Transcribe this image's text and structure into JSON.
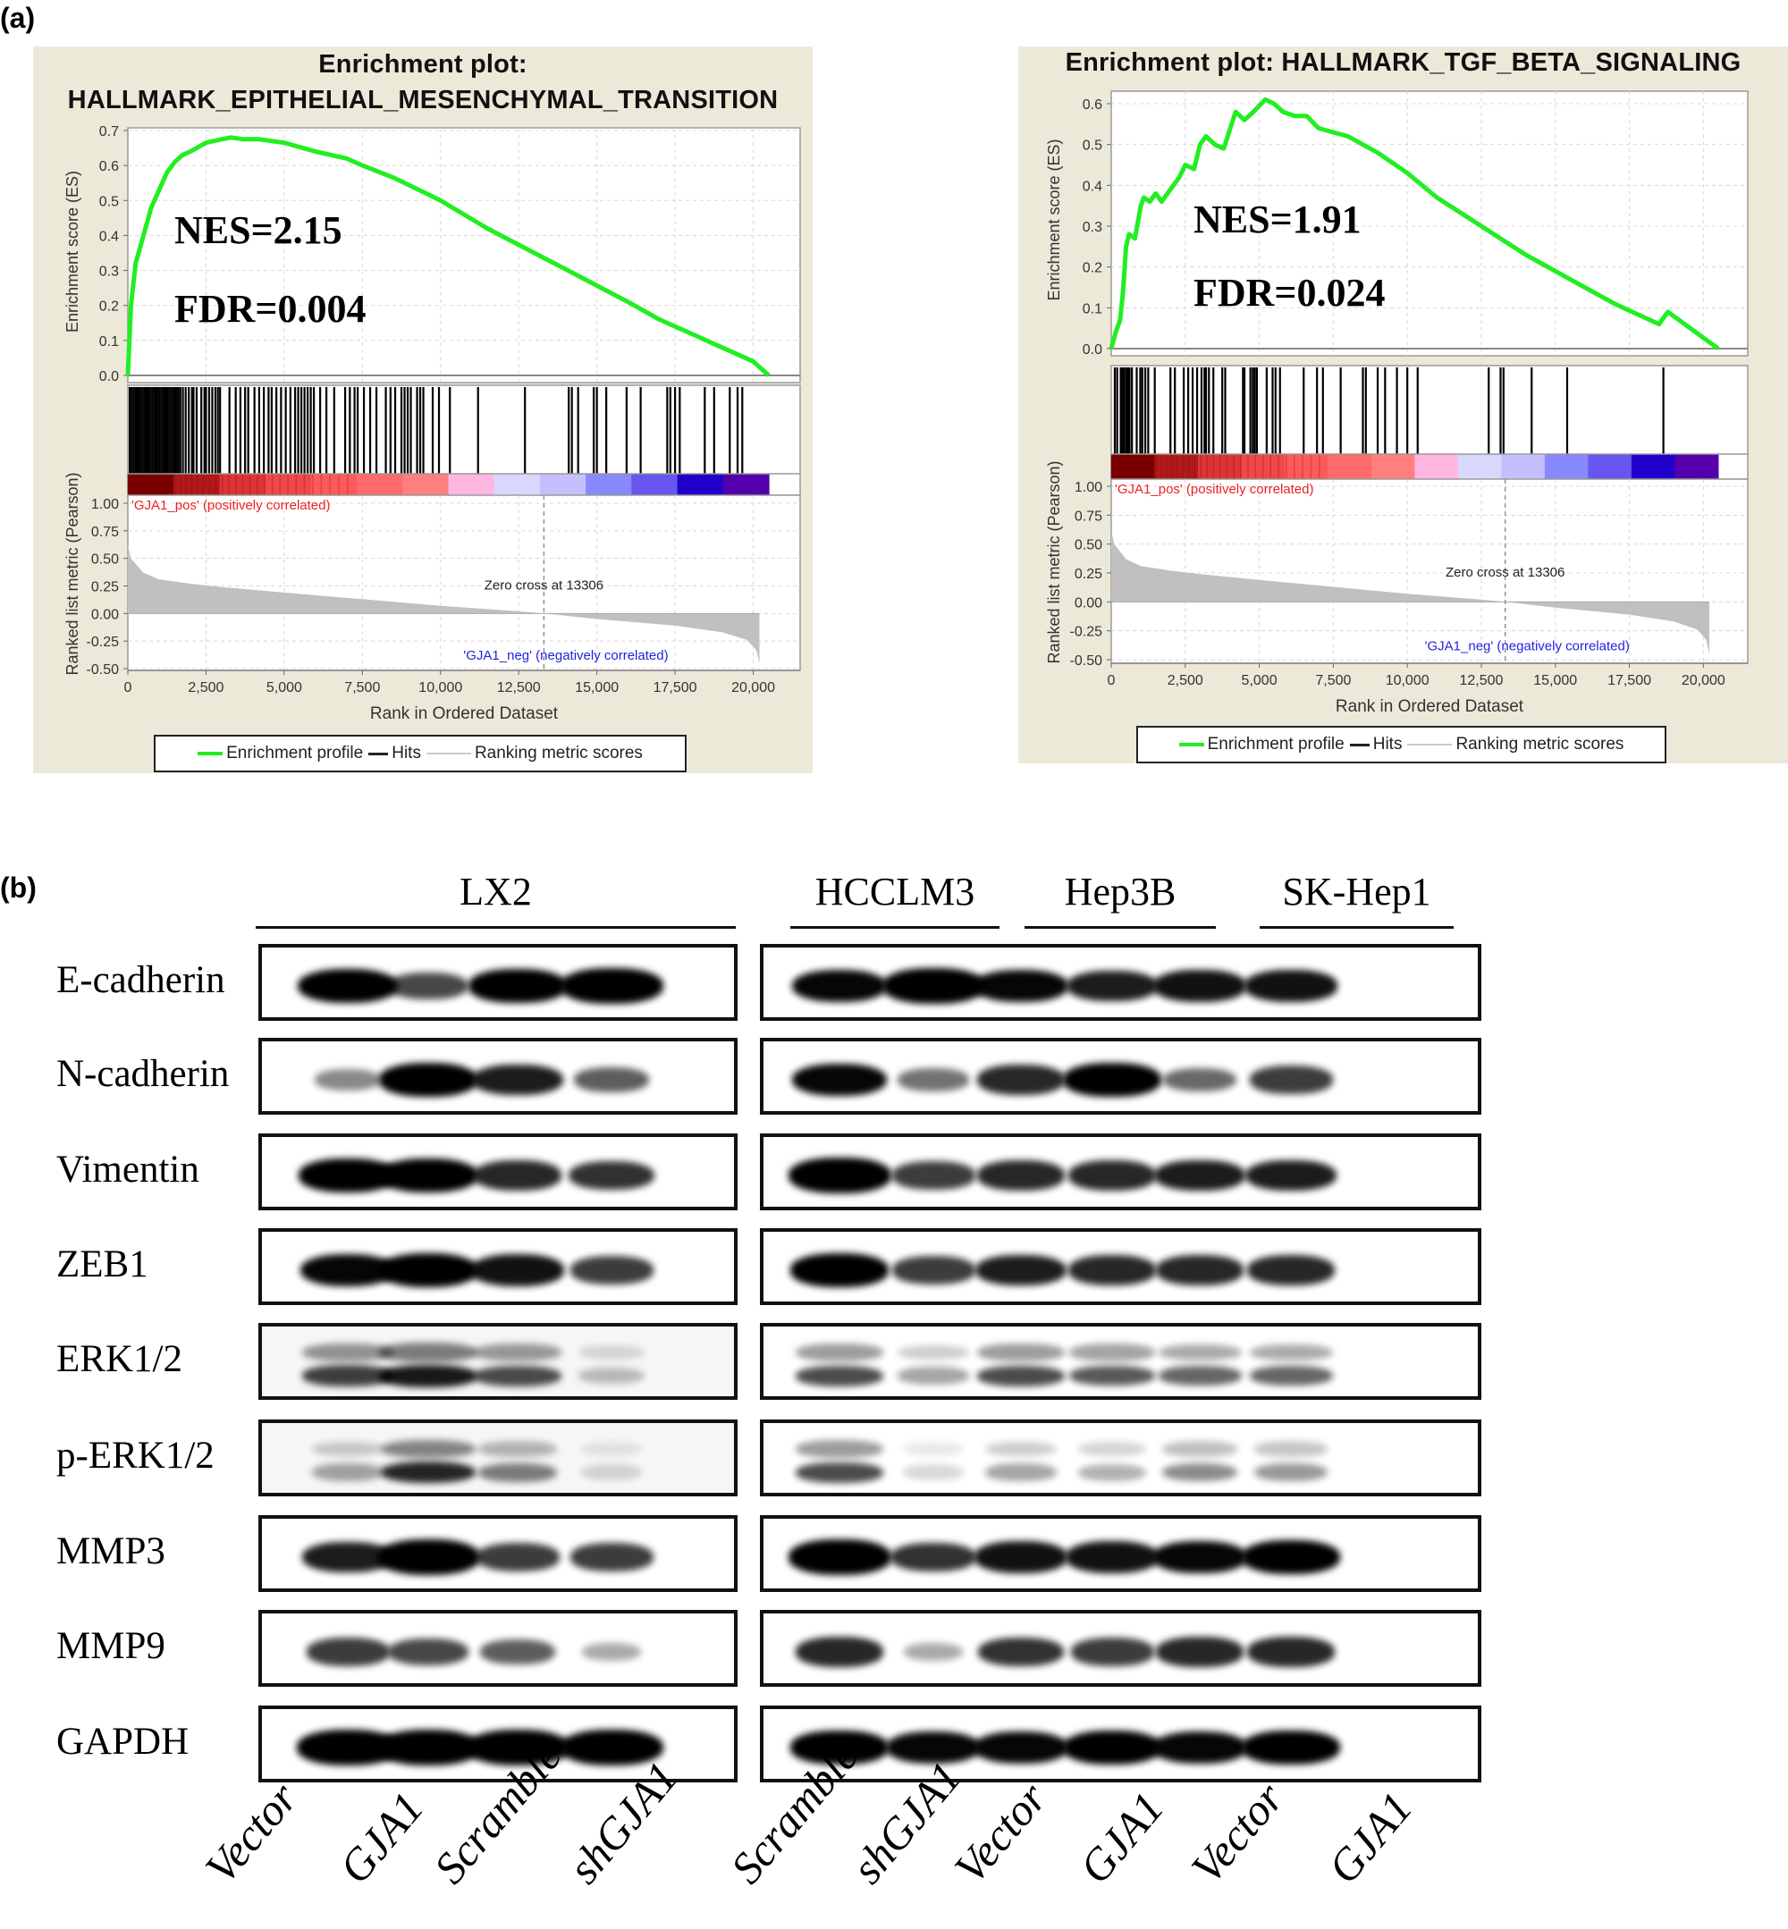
{
  "figure": {
    "panel_a_label": "(a)",
    "panel_b_label": "(b)"
  },
  "gsea_left": {
    "title_line1": "Enrichment plot:",
    "title_line2": "HALLMARK_EPITHELIAL_MESENCHYMAL_TRANSITION",
    "nes": "NES=2.15",
    "fdr": "FDR=0.004",
    "es_ylabel": "Enrichment score (ES)",
    "metric_ylabel": "Ranked list metric (Pearson)",
    "xlabel": "Rank in Ordered Dataset",
    "pos_label": "'GJA1_pos' (positively correlated)",
    "neg_label": "'GJA1_neg' (negatively correlated)",
    "zero_cross": "Zero cross at 13306",
    "legend": {
      "enrichment": "Enrichment profile",
      "hits": "Hits",
      "ranking": "Ranking metric scores"
    }
  },
  "gsea_right": {
    "title_line1": "Enrichment plot: HALLMARK_TGF_BETA_SIGNALING",
    "nes": "NES=1.91",
    "fdr": "FDR=0.024",
    "es_ylabel": "Enrichment score (ES)",
    "metric_ylabel": "Ranked list metric (Pearson)",
    "xlabel": "Rank in Ordered Dataset",
    "pos_label": "'GJA1_pos' (positively correlated)",
    "neg_label": "'GJA1_neg' (negatively correlated)",
    "zero_cross": "Zero cross at 13306",
    "legend": {
      "enrichment": "Enrichment profile",
      "hits": "Hits",
      "ranking": "Ranking metric scores"
    }
  },
  "colors": {
    "panel_bg": "#ece9d8",
    "enrichment_line": "#22ee22",
    "hits": "#000000",
    "metric_fill": "#c0c0c0",
    "pos_label": "#ee2222",
    "neg_label": "#2222dd"
  },
  "chart_data": [
    {
      "type": "line",
      "title": "Enrichment plot: HALLMARK_EPITHELIAL_MESENCHYMAL_TRANSITION",
      "xlabel": "Rank in Ordered Dataset",
      "ylabel": "Enrichment score (ES)",
      "xlim": [
        0,
        21500
      ],
      "ylim": [
        0.0,
        0.7
      ],
      "yticks": [
        0.0,
        0.1,
        0.2,
        0.3,
        0.4,
        0.5,
        0.6,
        0.7
      ],
      "xticks": [
        0,
        2500,
        5000,
        7500,
        10000,
        12500,
        15000,
        17500,
        20000
      ],
      "xtick_labels": [
        "0",
        "2,500",
        "5,000",
        "7,500",
        "10,000",
        "12,500",
        "15,000",
        "17,500",
        "20,000"
      ],
      "series": [
        {
          "name": "Enrichment profile",
          "x": [
            0,
            100,
            250,
            500,
            750,
            1000,
            1250,
            1500,
            1750,
            2000,
            2500,
            3000,
            3300,
            3700,
            4200,
            5000,
            6000,
            7000,
            7500,
            8500,
            10000,
            11500,
            13000,
            14500,
            16000,
            17000,
            18000,
            19000,
            20000,
            20500
          ],
          "y": [
            0.0,
            0.2,
            0.32,
            0.4,
            0.48,
            0.53,
            0.58,
            0.61,
            0.63,
            0.64,
            0.665,
            0.675,
            0.68,
            0.675,
            0.675,
            0.665,
            0.64,
            0.62,
            0.6,
            0.565,
            0.5,
            0.42,
            0.35,
            0.28,
            0.21,
            0.16,
            0.12,
            0.08,
            0.04,
            0.0
          ]
        }
      ],
      "annotations": [
        "NES=2.15",
        "FDR=0.004"
      ],
      "metric": {
        "ylabel": "Ranked list metric (Pearson)",
        "ylim": [
          -0.5,
          1.0
        ],
        "yticks": [
          1.0,
          0.75,
          0.5,
          0.25,
          0.0,
          -0.25,
          -0.5
        ],
        "ytick_labels": [
          "1.00",
          "0.75",
          "0.50",
          "0.25",
          "0.00",
          "-0.25",
          "-0.50"
        ],
        "x": [
          0,
          100,
          500,
          1000,
          2000,
          3000,
          5000,
          7500,
          10000,
          12500,
          13306,
          15000,
          17500,
          19000,
          19800,
          20100,
          20200
        ],
        "y": [
          0.62,
          0.5,
          0.37,
          0.31,
          0.27,
          0.24,
          0.19,
          0.13,
          0.07,
          0.02,
          0.0,
          -0.05,
          -0.11,
          -0.17,
          -0.24,
          -0.33,
          -0.45
        ],
        "zero_cross": 13306
      },
      "hits_end": 20500,
      "legend": [
        "Enrichment profile",
        "Hits",
        "Ranking metric scores"
      ],
      "legend_position": "bottom"
    },
    {
      "type": "line",
      "title": "Enrichment plot: HALLMARK_TGF_BETA_SIGNALING",
      "xlabel": "Rank in Ordered Dataset",
      "ylabel": "Enrichment score (ES)",
      "xlim": [
        0,
        21500
      ],
      "ylim": [
        0.0,
        0.6
      ],
      "yticks": [
        0.0,
        0.1,
        0.2,
        0.3,
        0.4,
        0.5,
        0.6
      ],
      "xticks": [
        0,
        2500,
        5000,
        7500,
        10000,
        12500,
        15000,
        17500,
        20000
      ],
      "xtick_labels": [
        "0",
        "2,500",
        "5,000",
        "7,500",
        "10,000",
        "12,500",
        "15,000",
        "17,500",
        "20,000"
      ],
      "series": [
        {
          "name": "Enrichment profile",
          "x": [
            0,
            150,
            300,
            400,
            500,
            600,
            800,
            1000,
            1100,
            1300,
            1500,
            1700,
            2000,
            2300,
            2500,
            2800,
            3000,
            3200,
            3500,
            3800,
            4200,
            4500,
            4800,
            5200,
            5500,
            5800,
            6200,
            6600,
            7000,
            7500,
            8000,
            8500,
            9000,
            10000,
            11000,
            12500,
            14000,
            15500,
            17000,
            18500,
            18800,
            20500
          ],
          "y": [
            0.0,
            0.04,
            0.07,
            0.14,
            0.25,
            0.28,
            0.27,
            0.35,
            0.37,
            0.36,
            0.38,
            0.36,
            0.39,
            0.42,
            0.45,
            0.44,
            0.5,
            0.52,
            0.5,
            0.49,
            0.58,
            0.56,
            0.58,
            0.61,
            0.6,
            0.58,
            0.57,
            0.57,
            0.54,
            0.53,
            0.52,
            0.5,
            0.48,
            0.43,
            0.37,
            0.3,
            0.23,
            0.17,
            0.11,
            0.06,
            0.09,
            0.0
          ]
        }
      ],
      "annotations": [
        "NES=1.91",
        "FDR=0.024"
      ],
      "metric": {
        "ylabel": "Ranked list metric (Pearson)",
        "ylim": [
          -0.5,
          1.0
        ],
        "yticks": [
          1.0,
          0.75,
          0.5,
          0.25,
          0.0,
          -0.25,
          -0.5
        ],
        "ytick_labels": [
          "1.00",
          "0.75",
          "0.50",
          "0.25",
          "0.00",
          "-0.25",
          "-0.50"
        ],
        "x": [
          0,
          100,
          500,
          1000,
          2000,
          3000,
          5000,
          7500,
          10000,
          12500,
          13306,
          15000,
          17500,
          19000,
          19800,
          20100,
          20200
        ],
        "y": [
          0.62,
          0.5,
          0.37,
          0.31,
          0.27,
          0.24,
          0.19,
          0.13,
          0.07,
          0.02,
          0.0,
          -0.05,
          -0.11,
          -0.17,
          -0.24,
          -0.33,
          -0.45
        ],
        "zero_cross": 13306
      },
      "hits_end": 20500,
      "legend": [
        "Enrichment profile",
        "Hits",
        "Ranking metric scores"
      ],
      "legend_position": "bottom"
    }
  ],
  "hits_left": [
    60,
    120,
    180,
    240,
    300,
    360,
    420,
    480,
    540,
    600,
    660,
    720,
    780,
    840,
    900,
    960,
    1020,
    1080,
    1140,
    1200,
    1260,
    1320,
    1380,
    1440,
    1500,
    1560,
    1620,
    1680,
    1760,
    1850,
    1950,
    2050,
    2100,
    2200,
    2350,
    2450,
    2500,
    2600,
    2700,
    2800,
    2880,
    2950,
    3250,
    3450,
    3600,
    3750,
    3850,
    4050,
    4200,
    4350,
    4500,
    4600,
    4750,
    4900,
    5050,
    5200,
    5350,
    5450,
    5550,
    5650,
    5750,
    5850,
    5950,
    6150,
    6350,
    6600,
    6950,
    7100,
    7250,
    7350,
    7550,
    7750,
    7950,
    8250,
    8400,
    8550,
    8750,
    8850,
    8950,
    9050,
    9250,
    9350,
    9450,
    9750,
    9950,
    10300,
    11200,
    12700,
    14100,
    14200,
    14400,
    14900,
    15000,
    15300,
    15950,
    16400,
    17250,
    17350,
    17500,
    17650,
    18450,
    18750,
    19250,
    19500,
    19650
  ],
  "hits_right": [
    120,
    200,
    320,
    380,
    430,
    500,
    560,
    620,
    700,
    860,
    980,
    1050,
    1150,
    1250,
    1470,
    2000,
    2150,
    2450,
    2600,
    2750,
    2900,
    3050,
    3150,
    3200,
    3300,
    3450,
    3750,
    3850,
    4450,
    4500,
    4700,
    4780,
    4850,
    4920,
    5250,
    5450,
    5550,
    5700,
    6500,
    6950,
    7150,
    7750,
    8500,
    8600,
    9000,
    9250,
    9650,
    10000,
    10350,
    12750,
    13150,
    13250,
    14200,
    15400,
    18650
  ],
  "colorbar_stops": [
    "#7a0000",
    "#b01a1a",
    "#dd3535",
    "#f04848",
    "#ff5a5a",
    "#ff6a6a",
    "#ff7e7e",
    "#ffb6e0",
    "#d8d8ff",
    "#c4c0ff",
    "#8888ff",
    "#6655ee",
    "#2200cc",
    "#5500aa"
  ],
  "western_blot": {
    "groups_left": [
      {
        "name": "LX2",
        "lanes": [
          "Vector",
          "GJA1",
          "Scramble",
          "shGJA1"
        ]
      }
    ],
    "groups_right": [
      {
        "name": "HCCLM3",
        "lanes": [
          "Scramble",
          "shGJA1"
        ]
      },
      {
        "name": "Hep3B",
        "lanes": [
          "Vector",
          "GJA1"
        ]
      },
      {
        "name": "SK-Hep1",
        "lanes": [
          "Vector",
          "GJA1"
        ]
      }
    ],
    "lane_labels": [
      "Vector",
      "GJA1",
      "Scramble",
      "shGJA1",
      "Scramble",
      "shGJA1",
      "Vector",
      "GJA1",
      "Vector",
      "GJA1"
    ],
    "rows": [
      {
        "label": "E-cadherin",
        "left": [
          0.95,
          0.55,
          0.9,
          1.0
        ],
        "right": [
          0.85,
          1.0,
          0.85,
          0.75,
          0.8,
          0.8
        ]
      },
      {
        "label": "N-cadherin",
        "left": [
          0.25,
          0.9,
          0.75,
          0.45
        ],
        "right": [
          0.85,
          0.35,
          0.7,
          0.9,
          0.4,
          0.6
        ]
      },
      {
        "label": "Vimentin",
        "left": [
          0.9,
          0.95,
          0.7,
          0.65
        ],
        "right": [
          1.0,
          0.6,
          0.7,
          0.7,
          0.75,
          0.75
        ]
      },
      {
        "label": "ZEB1",
        "left": [
          0.85,
          0.95,
          0.8,
          0.6
        ],
        "right": [
          0.9,
          0.6,
          0.75,
          0.7,
          0.7,
          0.7
        ]
      },
      {
        "label": "ERK1/2",
        "left": [
          0.75,
          0.9,
          0.7,
          0.25
        ],
        "right": [
          0.7,
          0.35,
          0.7,
          0.65,
          0.6,
          0.6
        ]
      },
      {
        "label": "p-ERK1/2",
        "left": [
          0.35,
          0.85,
          0.5,
          0.15
        ],
        "right": [
          0.7,
          0.15,
          0.35,
          0.3,
          0.45,
          0.4
        ]
      },
      {
        "label": "MMP3",
        "left": [
          0.75,
          1.0,
          0.6,
          0.6
        ],
        "right": [
          1.0,
          0.65,
          0.8,
          0.8,
          0.85,
          0.9
        ]
      },
      {
        "label": "MMP9",
        "left": [
          0.6,
          0.55,
          0.45,
          0.1
        ],
        "right": [
          0.7,
          0.1,
          0.65,
          0.6,
          0.7,
          0.7
        ]
      },
      {
        "label": "GAPDH",
        "left": [
          1.0,
          1.0,
          1.0,
          1.0
        ],
        "right": [
          0.9,
          0.85,
          0.85,
          0.9,
          0.85,
          0.9
        ]
      }
    ]
  }
}
